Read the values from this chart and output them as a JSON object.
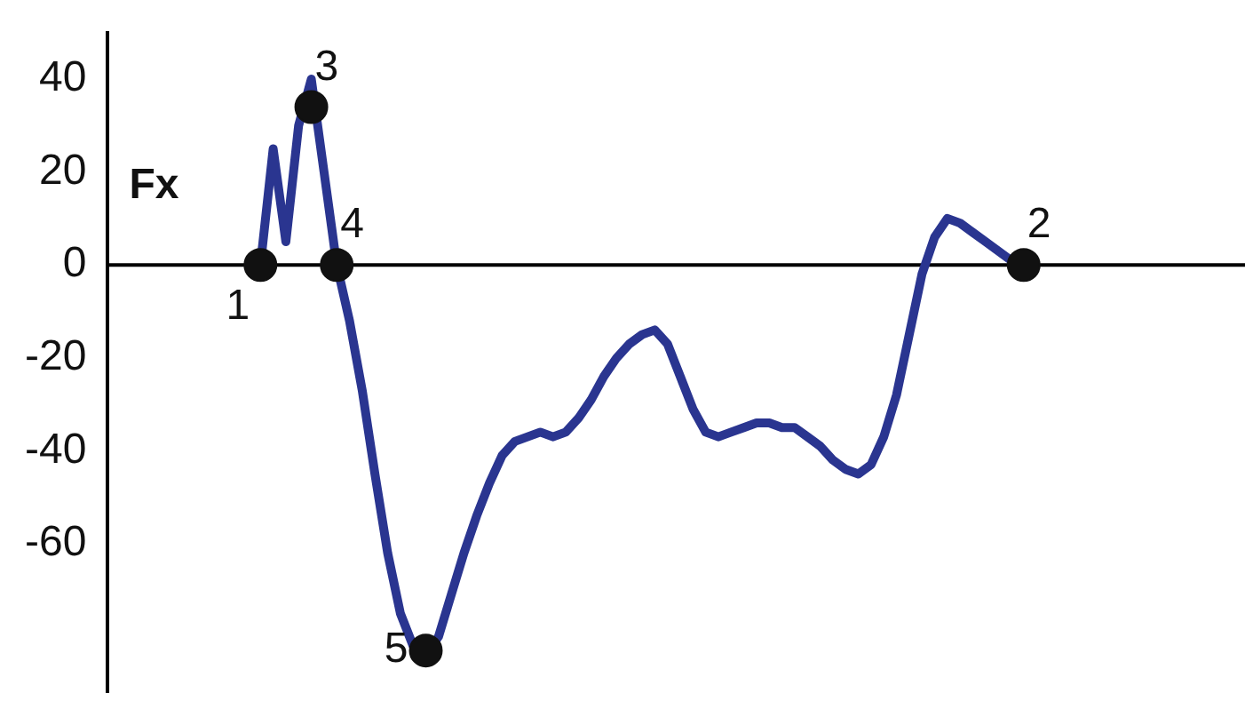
{
  "chart_data": {
    "type": "line",
    "ylabel": "Fx",
    "categories": [
      null,
      null,
      null,
      null,
      null,
      null,
      null,
      null,
      null,
      null,
      null,
      null,
      null,
      null,
      null,
      null,
      null,
      null,
      null,
      null,
      null,
      null,
      null,
      null,
      null,
      null,
      null,
      null,
      null,
      null,
      null,
      null,
      null,
      null,
      null,
      null,
      null,
      null,
      null,
      null,
      null,
      null,
      null,
      null,
      null,
      null,
      null,
      null,
      null,
      null,
      null,
      null,
      null,
      null,
      null,
      null,
      null,
      null,
      null,
      null,
      null,
      null,
      null,
      null,
      null,
      null,
      null,
      null,
      null,
      null,
      null,
      null,
      null,
      null,
      null,
      null,
      null,
      null,
      null,
      null,
      null,
      null,
      null,
      null,
      null,
      null,
      null,
      null,
      null
    ],
    "series": [
      {
        "color": "#2a3590",
        "marker": "none",
        "values": [
          null,
          null,
          null,
          null,
          null,
          null,
          null,
          null,
          null,
          null,
          null,
          null,
          0,
          25,
          5,
          30,
          40,
          20,
          0,
          -12,
          -27,
          -45,
          -62,
          -75,
          -82,
          -84,
          -80,
          -71,
          -62,
          -54,
          -47,
          -41,
          -38,
          -37,
          -36,
          -37,
          -36,
          -33,
          -29,
          -24,
          -20,
          -17,
          -15,
          -14,
          -17,
          -24,
          -31,
          -36,
          -37,
          -36,
          -35,
          -34,
          -34,
          -35,
          -35,
          -37,
          -39,
          -42,
          -44,
          -45,
          -43,
          -37,
          -28,
          -15,
          -2,
          6,
          10,
          9,
          7,
          5,
          3,
          1,
          0,
          null,
          null,
          null,
          null,
          null,
          null,
          null,
          null,
          null,
          null,
          null,
          null,
          null,
          null,
          null,
          null
        ]
      },
      {
        "type": "scatter",
        "color": "#111111",
        "marker": "circle",
        "values": [
          null,
          null,
          null,
          null,
          null,
          null,
          null,
          null,
          null,
          null,
          null,
          null,
          0,
          null,
          null,
          null,
          34,
          null,
          0,
          null,
          null,
          null,
          null,
          null,
          null,
          -83,
          null,
          null,
          null,
          null,
          null,
          null,
          null,
          null,
          null,
          null,
          null,
          null,
          null,
          null,
          null,
          null,
          null,
          null,
          null,
          null,
          null,
          null,
          null,
          null,
          null,
          null,
          null,
          null,
          null,
          null,
          null,
          null,
          null,
          null,
          null,
          null,
          null,
          null,
          null,
          null,
          null,
          null,
          null,
          null,
          null,
          null,
          0,
          null,
          null,
          null,
          null,
          null,
          null,
          null,
          null,
          null,
          null,
          null,
          null,
          null,
          null,
          null,
          null
        ]
      }
    ],
    "ylim": [
      -92,
      50
    ],
    "yticks": [
      40,
      20,
      0,
      -20,
      -40,
      -60
    ],
    "ref_lines": [
      {
        "axis": "y",
        "value": 0,
        "color": "#000000"
      }
    ],
    "annotations": [
      "1",
      "3",
      "4",
      "5",
      "2"
    ],
    "grid": false,
    "legend": false
  }
}
